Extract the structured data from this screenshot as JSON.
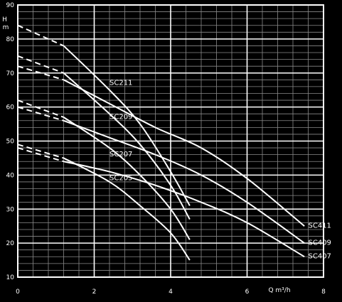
{
  "chart_data": {
    "type": "line",
    "background": "#000000",
    "foreground": "#ffffff",
    "grid": true,
    "xlabel": "Q m³/h",
    "ylabel": "H m",
    "xlim": [
      0,
      8
    ],
    "ylim": [
      10,
      90
    ],
    "x_major_ticks": [
      "0",
      "2",
      "4",
      "6",
      "8"
    ],
    "y_major_ticks": [
      "10",
      "20",
      "30",
      "40",
      "50",
      "60",
      "70",
      "80",
      "90"
    ],
    "x_minor_step": 0.4,
    "y_minor_step": 2,
    "dashed_until_x": 1.2,
    "series": [
      {
        "name": "SC211",
        "x": [
          0,
          1.2,
          2.4,
          3.2,
          4.0,
          4.5
        ],
        "y": [
          84,
          78,
          65,
          55,
          41,
          31
        ],
        "label_at": [
          2.4,
          66.5
        ]
      },
      {
        "name": "SC209",
        "x": [
          0,
          1.2,
          2.4,
          3.2,
          4.0,
          4.5
        ],
        "y": [
          75,
          70,
          58,
          49,
          37,
          27
        ],
        "label_at": [
          2.4,
          56.5
        ]
      },
      {
        "name": "SC207",
        "x": [
          0,
          1.2,
          2.4,
          3.2,
          4.0,
          4.5
        ],
        "y": [
          62,
          57,
          48,
          40,
          30,
          21
        ],
        "label_at": [
          2.4,
          45.5
        ]
      },
      {
        "name": "SC205",
        "x": [
          0,
          1.2,
          2.4,
          3.2,
          4.0,
          4.5
        ],
        "y": [
          49,
          45,
          38,
          31,
          23,
          15
        ],
        "label_at": [
          2.4,
          38.5
        ]
      },
      {
        "name": "SC411",
        "x": [
          0,
          1.2,
          2.4,
          3.6,
          4.8,
          6.0,
          7.5
        ],
        "y": [
          72,
          68,
          61,
          54,
          48,
          39,
          25
        ],
        "label_at": [
          7.6,
          24.5
        ]
      },
      {
        "name": "SC409",
        "x": [
          0,
          1.2,
          2.4,
          3.6,
          4.8,
          6.0,
          7.5
        ],
        "y": [
          60,
          56,
          51,
          46,
          40,
          32,
          20
        ],
        "label_at": [
          7.6,
          19.5
        ]
      },
      {
        "name": "SC407",
        "x": [
          0,
          1.2,
          2.4,
          3.6,
          4.8,
          6.0,
          7.5
        ],
        "y": [
          48,
          44,
          41,
          37,
          32,
          26,
          16
        ],
        "label_at": [
          7.6,
          15.5
        ]
      }
    ]
  }
}
